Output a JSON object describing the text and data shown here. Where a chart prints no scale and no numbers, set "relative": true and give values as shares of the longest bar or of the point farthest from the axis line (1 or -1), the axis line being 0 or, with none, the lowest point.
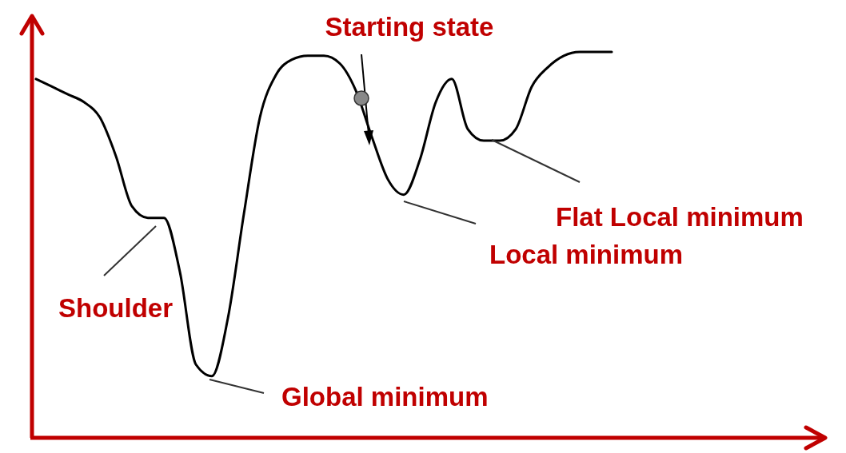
{
  "chart_data": {
    "type": "line",
    "relative": true,
    "categories": [
      null,
      null,
      null,
      null,
      null,
      null,
      null,
      null,
      null,
      null,
      null,
      null,
      null,
      null,
      null,
      null,
      null,
      null,
      null,
      null,
      null,
      null,
      null,
      null,
      null,
      null,
      null,
      null,
      null,
      null,
      null,
      null,
      null,
      null,
      null,
      null,
      null
    ],
    "series": [
      {
        "color": "#000000",
        "values": [
          0.93,
          0.91,
          0.89,
          0.87,
          0.83,
          0.73,
          0.6,
          0.57,
          0.57,
          0.43,
          0.19,
          0.16,
          0.31,
          0.58,
          0.83,
          0.94,
          0.98,
          0.99,
          0.99,
          0.97,
          0.9,
          0.78,
          0.67,
          0.63,
          0.72,
          0.87,
          0.93,
          0.8,
          0.77,
          0.77,
          0.8,
          0.91,
          0.96,
          0.99,
          1,
          1,
          1
        ]
      }
    ],
    "annotations": [
      "Starting state",
      "Flat Local minimum",
      "Local minimum",
      "Shoulder",
      "Global minimum"
    ],
    "marker": "none",
    "line_style": "solid"
  }
}
